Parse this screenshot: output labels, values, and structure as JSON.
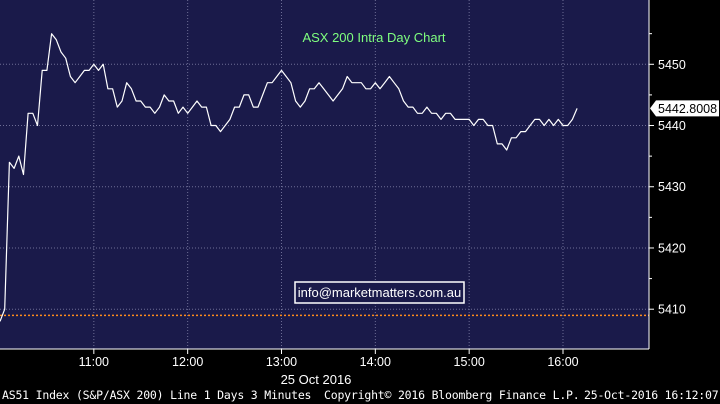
{
  "chart_data": {
    "type": "line",
    "title": "ASX 200 Intra Day Chart",
    "date_label": "25 Oct 2016",
    "x_ticks": [
      "11:00",
      "12:00",
      "13:00",
      "14:00",
      "15:00",
      "16:00"
    ],
    "y_ticks": [
      5410,
      5420,
      5430,
      5440,
      5450
    ],
    "ylim": [
      5403.5,
      5460.5
    ],
    "xlim": [
      "10:00",
      "16:55"
    ],
    "last_price_label": "5442.8008",
    "reference_level": 5409,
    "watermark": "info@marketmatters.com.au",
    "grid": true,
    "series": [
      {
        "x": [
          "10:00",
          "10:03",
          "10:06",
          "10:09",
          "10:12",
          "10:15",
          "10:18",
          "10:21",
          "10:24",
          "10:27",
          "10:30",
          "10:33",
          "10:36",
          "10:39",
          "10:42",
          "10:45",
          "10:48",
          "10:51",
          "10:54",
          "10:57",
          "11:00",
          "11:03",
          "11:06",
          "11:09",
          "11:12",
          "11:15",
          "11:18",
          "11:21",
          "11:24",
          "11:27",
          "11:30",
          "11:33",
          "11:36",
          "11:39",
          "11:42",
          "11:45",
          "11:48",
          "11:51",
          "11:54",
          "11:57",
          "12:00",
          "12:03",
          "12:06",
          "12:09",
          "12:12",
          "12:15",
          "12:18",
          "12:21",
          "12:24",
          "12:27",
          "12:30",
          "12:33",
          "12:36",
          "12:39",
          "12:42",
          "12:45",
          "12:48",
          "12:51",
          "12:54",
          "12:57",
          "13:00",
          "13:03",
          "13:06",
          "13:09",
          "13:12",
          "13:15",
          "13:18",
          "13:21",
          "13:24",
          "13:27",
          "13:30",
          "13:33",
          "13:36",
          "13:39",
          "13:42",
          "13:45",
          "13:48",
          "13:51",
          "13:54",
          "13:57",
          "14:00",
          "14:03",
          "14:06",
          "14:09",
          "14:12",
          "14:15",
          "14:18",
          "14:21",
          "14:24",
          "14:27",
          "14:30",
          "14:33",
          "14:36",
          "14:39",
          "14:42",
          "14:45",
          "14:48",
          "14:51",
          "14:54",
          "14:57",
          "15:00",
          "15:03",
          "15:06",
          "15:09",
          "15:12",
          "15:15",
          "15:18",
          "15:21",
          "15:24",
          "15:27",
          "15:30",
          "15:33",
          "15:36",
          "15:39",
          "15:42",
          "15:45",
          "15:48",
          "15:51",
          "15:54",
          "15:57",
          "16:00",
          "16:03",
          "16:06",
          "16:09"
        ],
        "y": [
          5408,
          5410,
          5434,
          5433,
          5435,
          5432,
          5442,
          5442,
          5440,
          5449,
          5449,
          5455,
          5454,
          5452,
          5451,
          5448,
          5447,
          5448,
          5449,
          5449,
          5450,
          5449,
          5450,
          5446,
          5446,
          5443,
          5444,
          5447,
          5446,
          5444,
          5444,
          5443,
          5443,
          5442,
          5443,
          5445,
          5444,
          5444,
          5442,
          5443,
          5442,
          5443,
          5444,
          5443,
          5443,
          5440,
          5440,
          5439,
          5440,
          5441,
          5443,
          5443,
          5445,
          5445,
          5443,
          5443,
          5445,
          5447,
          5447,
          5448,
          5449,
          5448,
          5447,
          5444,
          5443,
          5444,
          5446,
          5446,
          5447,
          5446,
          5445,
          5444,
          5445,
          5446,
          5448,
          5447,
          5447,
          5447,
          5446,
          5446,
          5447,
          5446,
          5447,
          5448,
          5447,
          5446,
          5444,
          5443,
          5443,
          5442,
          5442,
          5443,
          5442,
          5442,
          5441,
          5442,
          5442,
          5441,
          5441,
          5441,
          5441,
          5440,
          5441,
          5441,
          5440,
          5440,
          5437,
          5437,
          5436,
          5438,
          5438,
          5439,
          5439,
          5440,
          5441,
          5441,
          5440,
          5441,
          5440,
          5441,
          5440,
          5440,
          5441,
          5442.8
        ]
      }
    ]
  },
  "footer": {
    "left": "AS51 Index (S&P/ASX 200) Line 1 Days 3 Minutes",
    "center": "Copyright© 2016 Bloomberg Finance L.P.",
    "right": "25-Oct-2016 16:12:07"
  },
  "colors": {
    "plot_bg": "#1a1a4a",
    "line": "#ffffff",
    "grid": "#6e6e96",
    "title": "#7fff7f",
    "reference": "#ff8c1a",
    "label_bg": "#ffffff",
    "label_text": "#000000"
  }
}
